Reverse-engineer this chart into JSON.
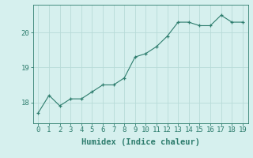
{
  "x": [
    0,
    1,
    2,
    3,
    4,
    5,
    6,
    7,
    8,
    9,
    10,
    11,
    12,
    13,
    14,
    15,
    16,
    17,
    18,
    19
  ],
  "y": [
    17.7,
    18.2,
    17.9,
    18.1,
    18.1,
    18.3,
    18.5,
    18.5,
    18.7,
    19.3,
    19.4,
    19.6,
    19.9,
    20.3,
    20.3,
    20.2,
    20.2,
    20.5,
    20.3,
    20.3
  ],
  "line_color": "#2e7d6e",
  "marker_color": "#2e7d6e",
  "background_color": "#d6f0ee",
  "grid_color": "#b8dbd8",
  "xlabel": "Humidex (Indice chaleur)",
  "yticks": [
    18,
    19,
    20
  ],
  "ylim": [
    17.4,
    20.8
  ],
  "xlim": [
    -0.5,
    19.5
  ],
  "tick_label_color": "#2e7d6e",
  "axis_color": "#2e7d6e",
  "xlabel_color": "#2e7d6e",
  "font_size": 6.5,
  "xlabel_font_size": 7.5
}
